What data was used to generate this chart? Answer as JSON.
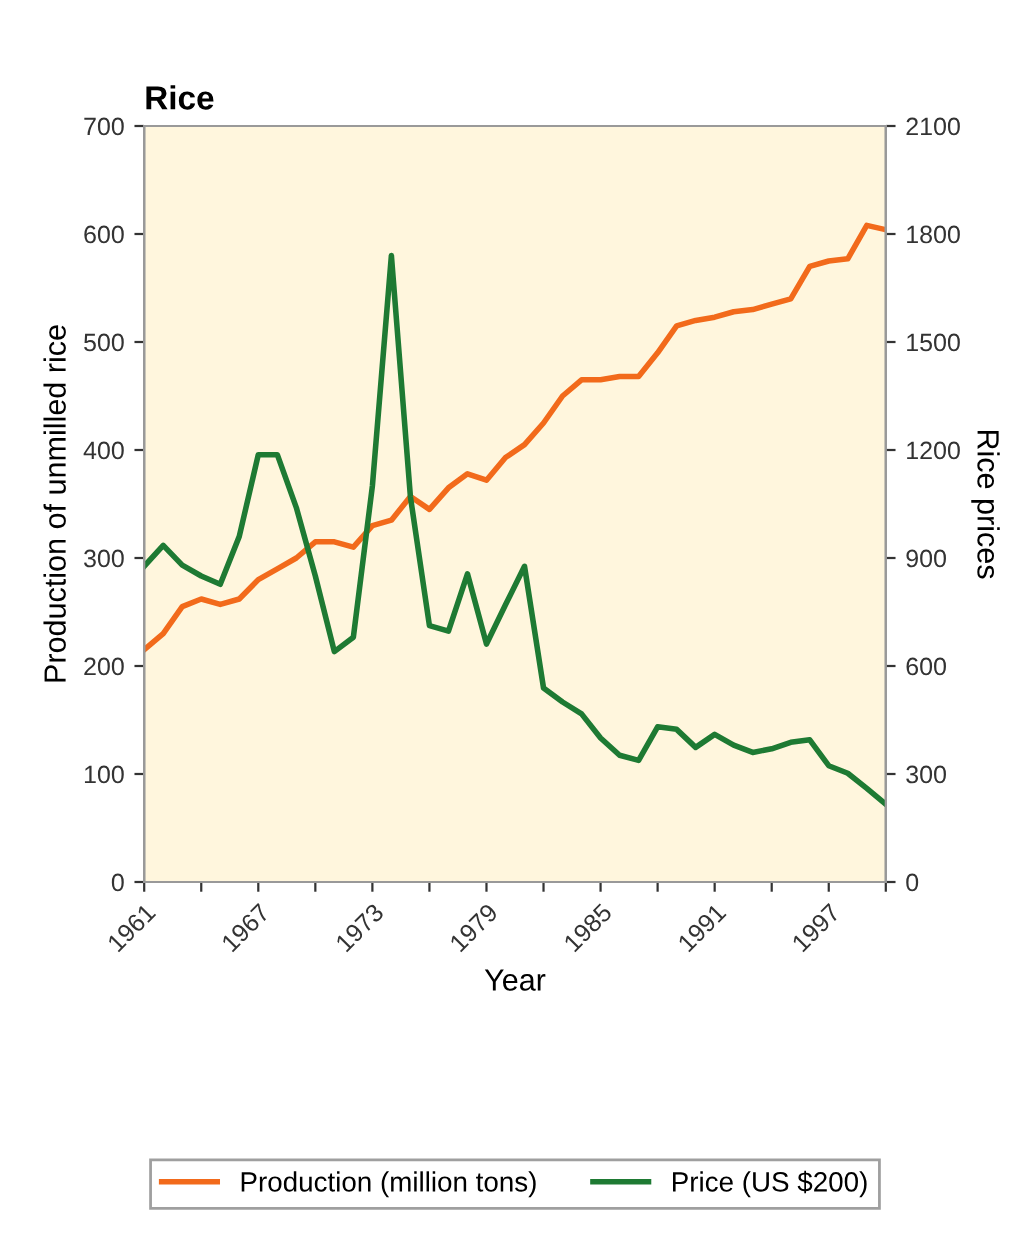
{
  "chart_data": {
    "type": "line",
    "title": "Rice",
    "xlabel": "Year",
    "ylabel": "Production of unmilled rice",
    "y2label": "Rice prices",
    "x": [
      1961,
      1962,
      1963,
      1964,
      1965,
      1966,
      1967,
      1968,
      1969,
      1970,
      1971,
      1972,
      1973,
      1974,
      1975,
      1976,
      1977,
      1978,
      1979,
      1980,
      1981,
      1982,
      1983,
      1984,
      1985,
      1986,
      1987,
      1988,
      1989,
      1990,
      1991,
      1992,
      1993,
      1994,
      1995,
      1996,
      1997,
      1998,
      1999,
      2000
    ],
    "series": [
      {
        "name": "Production (million tons)",
        "color": "#f26a1b",
        "values": [
          215,
          230,
          255,
          262,
          257,
          262,
          280,
          290,
          300,
          315,
          315,
          310,
          330,
          335,
          357,
          345,
          365,
          378,
          372,
          393,
          405,
          425,
          450,
          465,
          465,
          468,
          468,
          490,
          515,
          520,
          523,
          528,
          530,
          535,
          540,
          570,
          575,
          577,
          608,
          604
        ]
      },
      {
        "name": "Price (US $200)",
        "color": "#1e7a33",
        "axis": "y2",
        "values": [
          877,
          935,
          880,
          850,
          827,
          960,
          1187,
          1187,
          1040,
          850,
          640,
          680,
          1100,
          1740,
          1070,
          712,
          697,
          856,
          661,
          770,
          877,
          539,
          500,
          467,
          400,
          352,
          338,
          431,
          424,
          374,
          410,
          380,
          360,
          370,
          388,
          395,
          323,
          302,
          260,
          216
        ]
      }
    ],
    "xlim": [
      1961,
      2000
    ],
    "xticks": [
      1961,
      {
        "value": 1964,
        "label": null
      },
      1967,
      {
        "value": 1970,
        "label": null
      },
      1973,
      {
        "value": 1976,
        "label": null
      },
      1979,
      {
        "value": 1982,
        "label": null
      },
      1985,
      {
        "value": 1988,
        "label": null
      },
      1991,
      {
        "value": 1994,
        "label": null
      },
      1997,
      {
        "value": 2000,
        "label": null
      }
    ],
    "ylim": [
      0,
      700
    ],
    "yticks": [
      0,
      100,
      200,
      300,
      400,
      500,
      600,
      700
    ],
    "y2lim": [
      0,
      2100
    ],
    "y2ticks": [
      0,
      300,
      600,
      900,
      1200,
      1500,
      1800,
      2100
    ],
    "legend": "bottom",
    "grid": false,
    "marker": "none",
    "line_style": "solid"
  }
}
